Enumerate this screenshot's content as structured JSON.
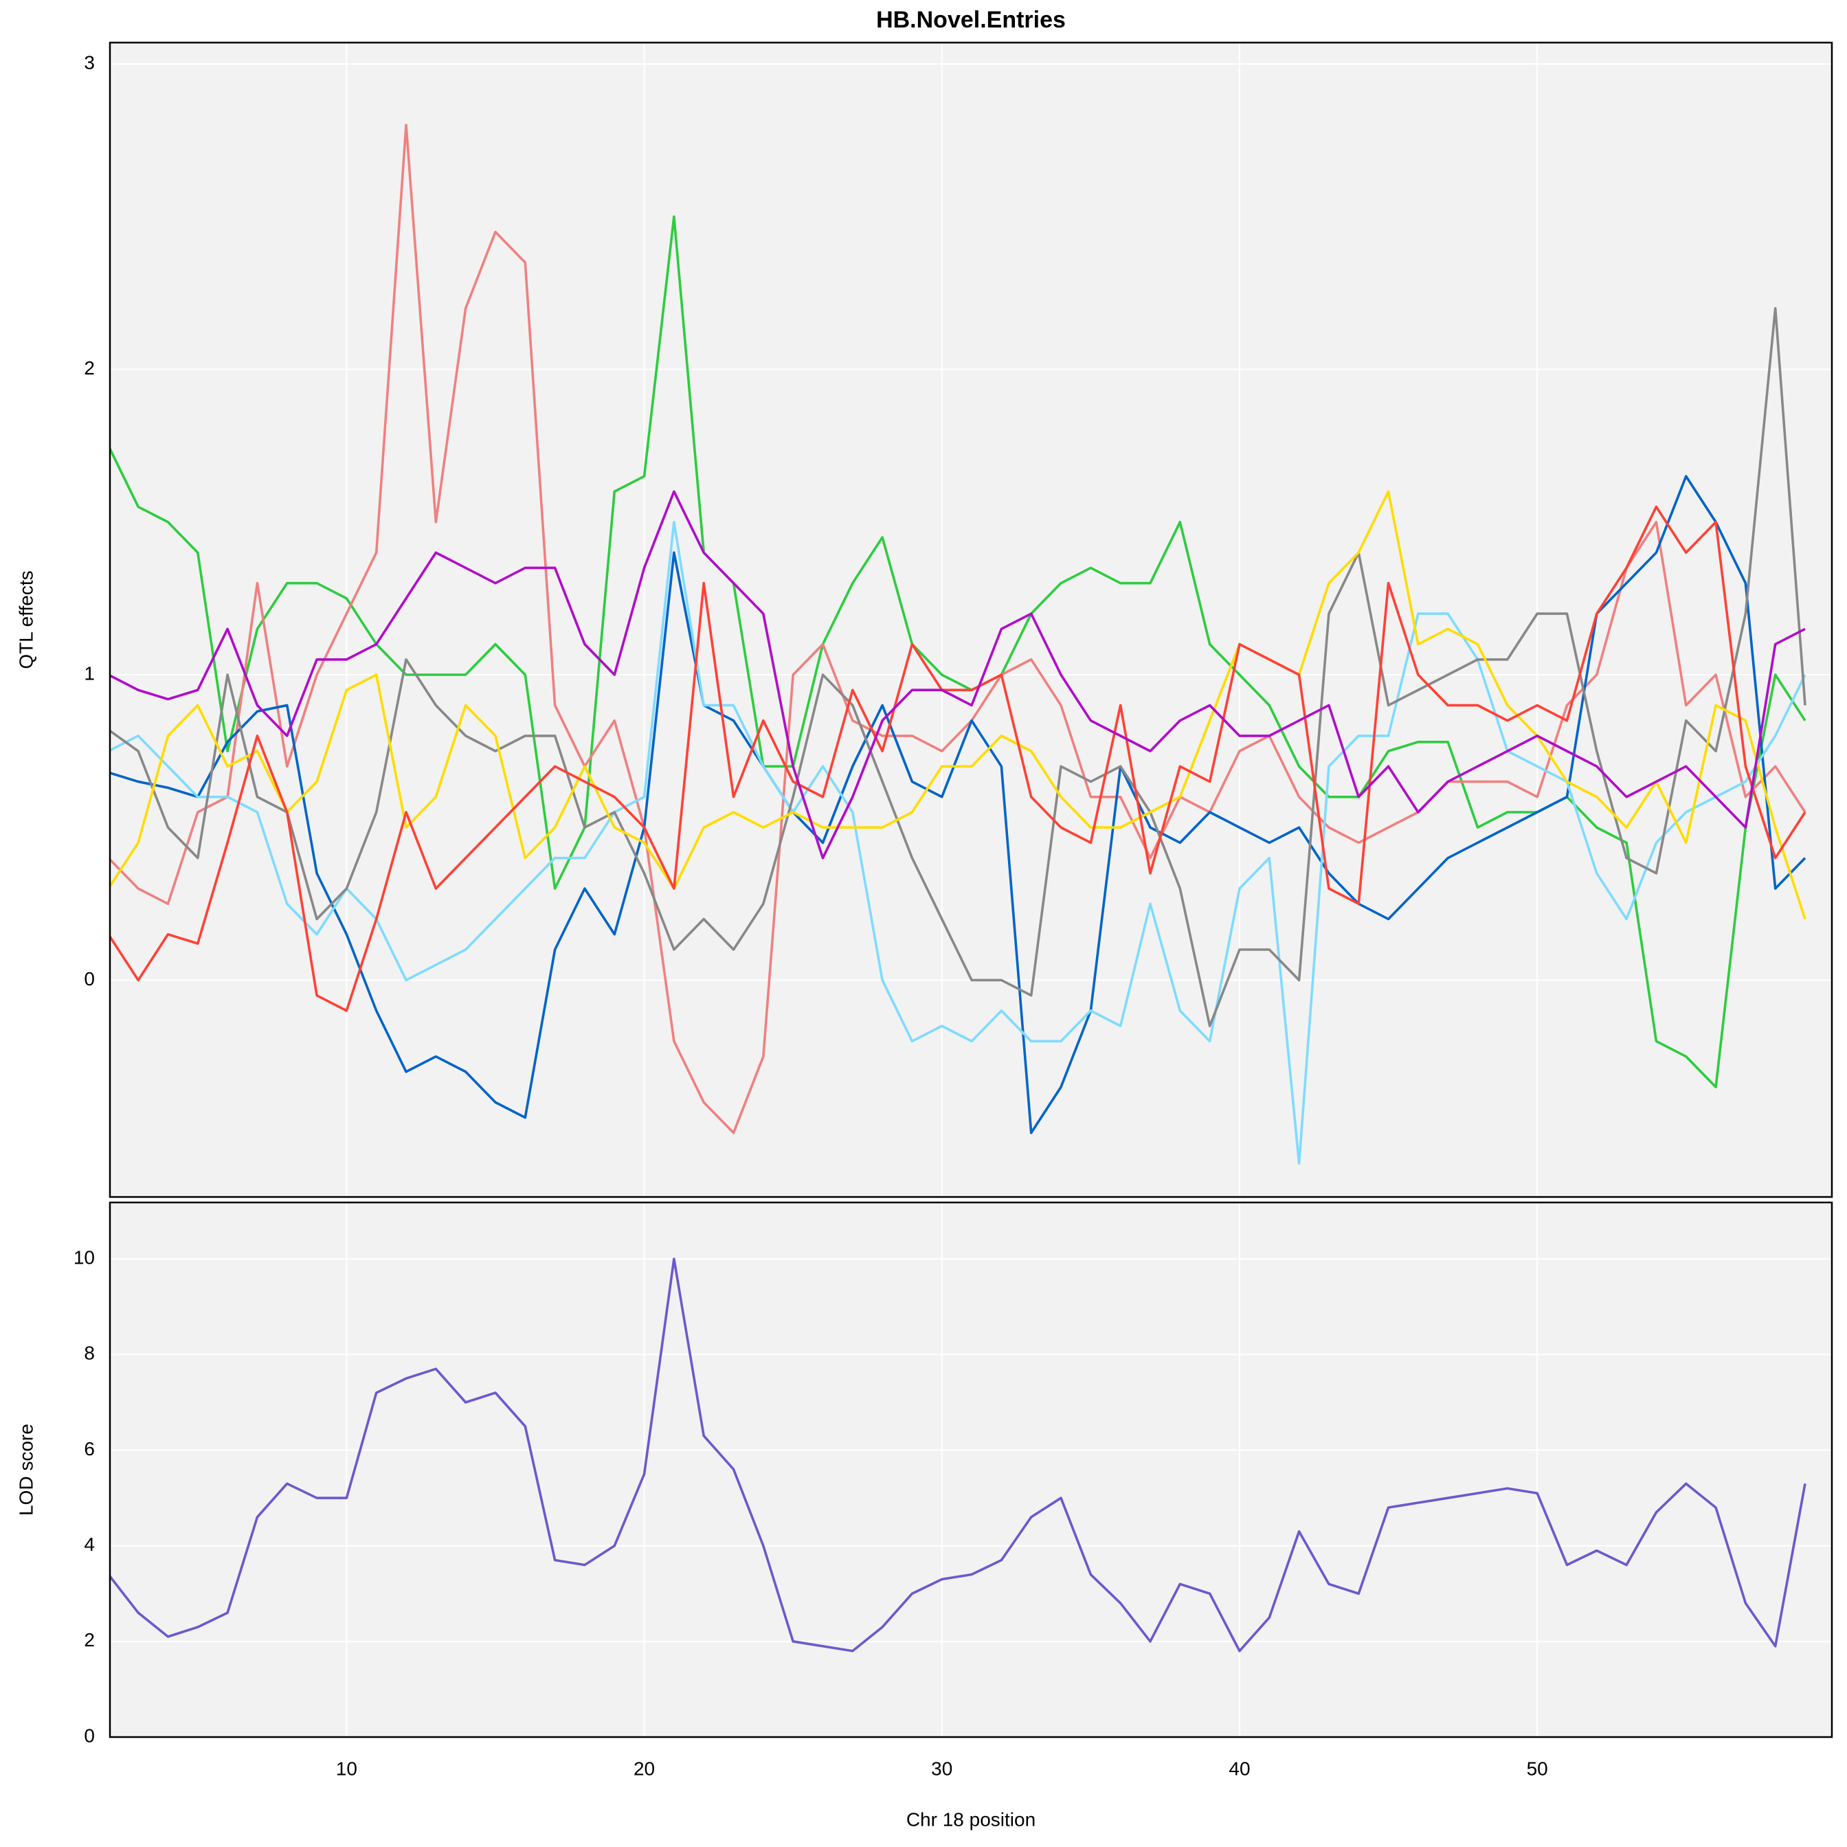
{
  "chart_data": [
    {
      "type": "line",
      "title": "HB.Novel.Entries",
      "ylabel": "QTL effects",
      "xlim": [
        2.05,
        59.9
      ],
      "ylim": [
        -0.71,
        3.07
      ],
      "yticks": [
        0,
        1,
        2,
        3
      ],
      "grid": true,
      "x": [
        2,
        3,
        4,
        5,
        6,
        7,
        8,
        9,
        10,
        11,
        12,
        13,
        14,
        15,
        16,
        17,
        18,
        19,
        20,
        21,
        22,
        23,
        24,
        25,
        26,
        27,
        28,
        29,
        30,
        31,
        32,
        33,
        34,
        35,
        36,
        37,
        38,
        39,
        40,
        41,
        42,
        43,
        44,
        45,
        46,
        47,
        48,
        49,
        50,
        51,
        52,
        53,
        54,
        55,
        56,
        57,
        58,
        59
      ],
      "series": [
        {
          "color": "#2ECC40",
          "values": [
            1.75,
            1.55,
            1.5,
            1.4,
            0.75,
            1.15,
            1.3,
            1.3,
            1.25,
            1.1,
            1.0,
            1.0,
            1.0,
            1.1,
            1.0,
            0.3,
            0.5,
            1.6,
            1.65,
            2.5,
            1.4,
            1.3,
            0.7,
            0.7,
            1.1,
            1.3,
            1.45,
            1.1,
            1.0,
            0.95,
            1.0,
            1.2,
            1.3,
            1.35,
            1.3,
            1.3,
            1.5,
            1.1,
            1.0,
            0.9,
            0.7,
            0.6,
            0.6,
            0.75,
            0.78,
            0.78,
            0.5,
            0.55,
            0.55,
            0.6,
            0.5,
            0.45,
            -0.2,
            -0.25,
            -0.35,
            0.5,
            1.0,
            0.85
          ]
        },
        {
          "color": "#F08080",
          "values": [
            0.4,
            0.3,
            0.25,
            0.55,
            0.6,
            1.3,
            0.7,
            1.0,
            1.2,
            1.4,
            2.8,
            1.5,
            2.2,
            2.45,
            2.35,
            0.9,
            0.7,
            0.85,
            0.5,
            -0.2,
            -0.4,
            -0.5,
            -0.25,
            1.0,
            1.1,
            0.85,
            0.8,
            0.8,
            0.75,
            0.85,
            1.0,
            1.05,
            0.9,
            0.6,
            0.6,
            0.4,
            0.6,
            0.55,
            0.75,
            0.8,
            0.6,
            0.5,
            0.45,
            0.5,
            0.55,
            0.65,
            0.65,
            0.65,
            0.6,
            0.9,
            1.0,
            1.35,
            1.5,
            0.9,
            1.0,
            0.6,
            0.7,
            0.55
          ]
        },
        {
          "color": "#0064C9",
          "values": [
            0.68,
            0.65,
            0.63,
            0.6,
            0.78,
            0.88,
            0.9,
            0.35,
            0.15,
            -0.1,
            -0.3,
            -0.25,
            -0.3,
            -0.4,
            -0.45,
            0.1,
            0.3,
            0.15,
            0.5,
            1.4,
            0.9,
            0.85,
            0.7,
            0.55,
            0.45,
            0.7,
            0.9,
            0.65,
            0.6,
            0.85,
            0.7,
            -0.5,
            -0.35,
            -0.1,
            0.7,
            0.5,
            0.45,
            0.55,
            0.5,
            0.45,
            0.5,
            0.35,
            0.25,
            0.2,
            0.3,
            0.4,
            0.45,
            0.5,
            0.55,
            0.6,
            1.2,
            1.3,
            1.4,
            1.65,
            1.5,
            1.3,
            0.3,
            0.4
          ]
        },
        {
          "color": "#7FDBFF",
          "values": [
            0.75,
            0.8,
            0.7,
            0.6,
            0.6,
            0.55,
            0.25,
            0.15,
            0.3,
            0.2,
            0.0,
            0.05,
            0.1,
            0.2,
            0.3,
            0.4,
            0.4,
            0.55,
            0.6,
            1.5,
            0.9,
            0.9,
            0.7,
            0.55,
            0.7,
            0.55,
            0.0,
            -0.2,
            -0.15,
            -0.2,
            -0.1,
            -0.2,
            -0.2,
            -0.1,
            -0.15,
            0.25,
            -0.1,
            -0.2,
            0.3,
            0.4,
            -0.6,
            0.7,
            0.8,
            0.8,
            1.2,
            1.2,
            1.05,
            0.75,
            0.7,
            0.65,
            0.35,
            0.2,
            0.45,
            0.55,
            0.6,
            0.65,
            0.8,
            1.0
          ]
        },
        {
          "color": "#888888",
          "values": [
            0.82,
            0.75,
            0.5,
            0.4,
            1.0,
            0.6,
            0.55,
            0.2,
            0.3,
            0.55,
            1.05,
            0.9,
            0.8,
            0.75,
            0.8,
            0.8,
            0.5,
            0.55,
            0.35,
            0.1,
            0.2,
            0.1,
            0.25,
            0.6,
            1.0,
            0.9,
            0.65,
            0.4,
            0.2,
            0.0,
            0.0,
            -0.05,
            0.7,
            0.65,
            0.7,
            0.55,
            0.3,
            -0.15,
            0.1,
            0.1,
            0.0,
            1.2,
            1.4,
            0.9,
            0.95,
            1.0,
            1.05,
            1.05,
            1.2,
            1.2,
            0.75,
            0.4,
            0.35,
            0.85,
            0.75,
            1.2,
            2.2,
            0.9
          ]
        },
        {
          "color": "#FFDC00",
          "values": [
            0.3,
            0.45,
            0.8,
            0.9,
            0.7,
            0.75,
            0.55,
            0.65,
            0.95,
            1.0,
            0.5,
            0.6,
            0.9,
            0.8,
            0.4,
            0.5,
            0.7,
            0.5,
            0.45,
            0.3,
            0.5,
            0.55,
            0.5,
            0.55,
            0.5,
            0.5,
            0.5,
            0.55,
            0.7,
            0.7,
            0.8,
            0.75,
            0.6,
            0.5,
            0.5,
            0.55,
            0.6,
            0.85,
            1.1,
            1.05,
            1.0,
            1.3,
            1.4,
            1.6,
            1.1,
            1.15,
            1.1,
            0.9,
            0.8,
            0.65,
            0.6,
            0.5,
            0.65,
            0.45,
            0.9,
            0.85,
            0.5,
            0.2
          ]
        },
        {
          "color": "#FF4136",
          "values": [
            0.15,
            0.0,
            0.15,
            0.12,
            0.45,
            0.8,
            0.55,
            -0.05,
            -0.1,
            0.2,
            0.55,
            0.3,
            0.4,
            0.5,
            0.6,
            0.7,
            0.65,
            0.6,
            0.5,
            0.3,
            1.3,
            0.6,
            0.85,
            0.65,
            0.6,
            0.95,
            0.75,
            1.1,
            0.95,
            0.95,
            1.0,
            0.6,
            0.5,
            0.45,
            0.9,
            0.35,
            0.7,
            0.65,
            1.1,
            1.05,
            1.0,
            0.3,
            0.25,
            1.3,
            1.0,
            0.9,
            0.9,
            0.85,
            0.9,
            0.85,
            1.2,
            1.35,
            1.55,
            1.4,
            1.5,
            0.7,
            0.4,
            0.55
          ]
        },
        {
          "color": "#B10DC9",
          "values": [
            1.0,
            0.95,
            0.92,
            0.95,
            1.15,
            0.9,
            0.8,
            1.05,
            1.05,
            1.1,
            1.25,
            1.4,
            1.35,
            1.3,
            1.35,
            1.35,
            1.1,
            1.0,
            1.35,
            1.6,
            1.4,
            1.3,
            1.2,
            0.7,
            0.4,
            0.6,
            0.85,
            0.95,
            0.95,
            0.9,
            1.15,
            1.2,
            1.0,
            0.85,
            0.8,
            0.75,
            0.85,
            0.9,
            0.8,
            0.8,
            0.85,
            0.9,
            0.6,
            0.7,
            0.55,
            0.65,
            0.7,
            0.75,
            0.8,
            0.75,
            0.7,
            0.6,
            0.65,
            0.7,
            0.6,
            0.5,
            1.1,
            1.15
          ]
        }
      ]
    },
    {
      "type": "line",
      "ylabel": "LOD score",
      "xlabel": "Chr 18 position",
      "xlim": [
        2.05,
        59.9
      ],
      "xticks": [
        10,
        20,
        30,
        40,
        50
      ],
      "ylim": [
        0,
        11.18
      ],
      "yticks": [
        0,
        2,
        4,
        6,
        8,
        10
      ],
      "grid": true,
      "x": [
        2,
        3,
        4,
        5,
        6,
        7,
        8,
        9,
        10,
        11,
        12,
        13,
        14,
        15,
        16,
        17,
        18,
        19,
        20,
        21,
        22,
        23,
        24,
        25,
        26,
        27,
        28,
        29,
        30,
        31,
        32,
        33,
        34,
        35,
        36,
        37,
        38,
        39,
        40,
        41,
        42,
        43,
        44,
        45,
        46,
        47,
        48,
        49,
        50,
        51,
        52,
        53,
        54,
        55,
        56,
        57,
        58,
        59
      ],
      "series": [
        {
          "color": "#6A5ACD",
          "values": [
            3.4,
            2.6,
            2.1,
            2.3,
            2.6,
            4.6,
            5.3,
            5.0,
            5.0,
            7.2,
            7.5,
            7.7,
            7.0,
            7.2,
            6.5,
            3.7,
            3.6,
            4.0,
            5.5,
            10.0,
            6.3,
            5.6,
            4.0,
            2.0,
            1.9,
            1.8,
            2.3,
            3.0,
            3.3,
            3.4,
            3.7,
            4.6,
            5.0,
            3.4,
            2.8,
            2.0,
            3.2,
            3.0,
            1.8,
            2.5,
            4.3,
            3.2,
            3.0,
            4.8,
            4.9,
            5.0,
            5.1,
            5.2,
            5.1,
            3.6,
            3.9,
            3.6,
            4.7,
            5.3,
            4.8,
            2.8,
            1.9,
            5.3
          ]
        }
      ]
    }
  ]
}
